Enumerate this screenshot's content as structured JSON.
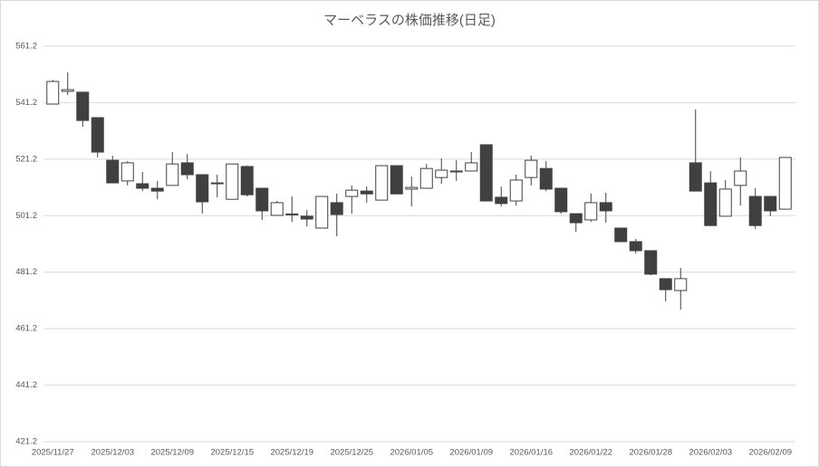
{
  "chart_data": {
    "type": "candlestick",
    "title": "マーベラスの株価推移(日足)",
    "categories": [
      "2025/11/27",
      null,
      null,
      null,
      "2025/12/03",
      null,
      null,
      null,
      "2025/12/09",
      null,
      null,
      null,
      "2025/12/15",
      null,
      null,
      null,
      "2025/12/19",
      null,
      null,
      null,
      "2025/12/25",
      null,
      null,
      null,
      "2026/01/05",
      null,
      null,
      null,
      "2026/01/09",
      null,
      null,
      null,
      "2026/01/16",
      null,
      null,
      null,
      "2026/01/22",
      null,
      null,
      null,
      "2026/01/28",
      null,
      null,
      null,
      "2026/02/03",
      null,
      null,
      null,
      "2026/02/09",
      null
    ],
    "open": [
      540.7,
      545.2,
      544.9,
      535.9,
      520.8,
      513.5,
      512.5,
      510.9,
      511.9,
      519.9,
      515.7,
      512.5,
      507.0,
      518.6,
      510.9,
      501.3,
      501.8,
      501.0,
      496.8,
      505.8,
      508.0,
      509.9,
      506.7,
      518.9,
      510.6,
      510.9,
      514.7,
      516.7,
      517.0,
      526.3,
      507.7,
      506.4,
      514.7,
      517.9,
      510.9,
      501.9,
      499.7,
      505.8,
      496.8,
      492.0,
      488.8,
      478.9,
      474.7,
      519.9,
      512.8,
      501.0,
      511.9,
      508.0,
      508.0,
      503.5
    ],
    "high": [
      549.3,
      551.9,
      544.9,
      535.9,
      522.4,
      520.5,
      516.7,
      513.5,
      523.7,
      523.0,
      515.7,
      515.7,
      519.5,
      518.9,
      510.9,
      506.4,
      508.0,
      503.2,
      508.0,
      509.0,
      511.9,
      511.5,
      518.9,
      519.0,
      515.0,
      519.5,
      521.5,
      520.8,
      523.7,
      526.3,
      511.5,
      515.7,
      522.4,
      520.5,
      510.9,
      501.9,
      509.0,
      509.3,
      496.8,
      493.0,
      488.8,
      478.9,
      482.7,
      538.8,
      516.9,
      513.8,
      521.8,
      510.9,
      508.0,
      521.8
    ],
    "low": [
      540.7,
      543.9,
      532.7,
      521.8,
      512.8,
      511.9,
      509.9,
      507.0,
      511.9,
      514.1,
      501.9,
      507.7,
      507.0,
      508.0,
      499.7,
      501.3,
      499.0,
      497.4,
      496.8,
      493.9,
      501.9,
      505.8,
      506.7,
      508.9,
      504.5,
      510.9,
      512.5,
      513.5,
      517.0,
      506.4,
      504.5,
      504.8,
      511.9,
      509.9,
      501.9,
      495.5,
      499.0,
      498.7,
      492.0,
      487.8,
      480.1,
      470.9,
      467.9,
      509.9,
      497.7,
      501.0,
      504.8,
      496.5,
      501.0,
      503.5
    ],
    "close": [
      548.7,
      545.8,
      534.9,
      523.7,
      512.8,
      519.9,
      510.9,
      509.9,
      519.5,
      515.7,
      506.1,
      512.8,
      519.5,
      508.6,
      502.9,
      505.8,
      501.6,
      500.0,
      508.0,
      501.6,
      510.2,
      508.9,
      518.9,
      508.9,
      511.2,
      517.9,
      517.3,
      517.0,
      519.9,
      506.4,
      505.5,
      513.8,
      520.8,
      510.6,
      502.6,
      498.7,
      505.8,
      502.9,
      492.0,
      488.8,
      480.5,
      475.0,
      478.9,
      509.9,
      497.7,
      510.6,
      517.0,
      497.7,
      502.9,
      521.8
    ],
    "up_color": "#ffffff",
    "down_color": "#404040",
    "line_color": "#404040",
    "ylim": [
      421.2,
      561.2
    ],
    "yticks": [
      421.2,
      441.2,
      461.2,
      481.2,
      501.2,
      521.2,
      541.2,
      561.2
    ],
    "grid": true
  }
}
